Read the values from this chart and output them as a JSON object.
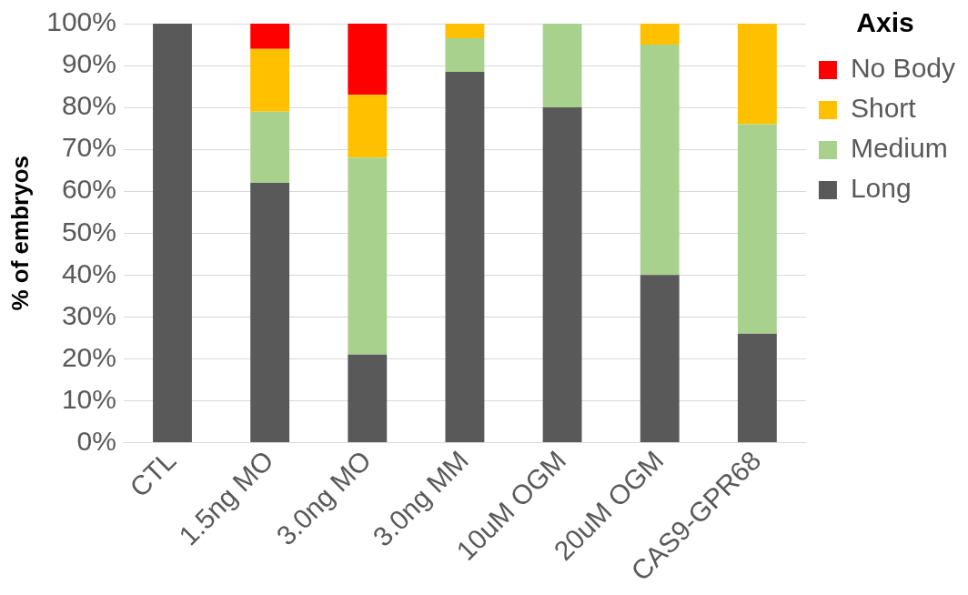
{
  "chart_data": {
    "type": "bar",
    "stacked": true,
    "ylabel": "% of embryos",
    "legend_title": "Axis",
    "legend": "right",
    "grid": "y",
    "categories": [
      "CTL",
      "1.5ng MO",
      "3.0ng MO",
      "3.0ng MM",
      "10uM OGM",
      "20uM OGM",
      "CAS9-GPR68"
    ],
    "series": [
      {
        "name": "Long",
        "color": "#595959",
        "values": [
          100,
          62,
          21,
          88.5,
          80,
          40,
          26
        ]
      },
      {
        "name": "Medium",
        "color": "#a9d18e",
        "values": [
          0,
          17,
          47,
          8,
          20,
          55,
          50
        ]
      },
      {
        "name": "Short",
        "color": "#ffc000",
        "values": [
          0,
          15,
          15,
          3.5,
          0,
          5,
          24
        ]
      },
      {
        "name": "No Body",
        "color": "#ff0000",
        "values": [
          0,
          6,
          17,
          0,
          0,
          0,
          0
        ]
      }
    ],
    "ylim": [
      0,
      100
    ],
    "yticks": [
      {
        "value": 0,
        "label": "0%"
      },
      {
        "value": 10,
        "label": "10%"
      },
      {
        "value": 20,
        "label": "20%"
      },
      {
        "value": 30,
        "label": "30%"
      },
      {
        "value": 40,
        "label": "40%"
      },
      {
        "value": 50,
        "label": "50%"
      },
      {
        "value": 60,
        "label": "60%"
      },
      {
        "value": 70,
        "label": "70%"
      },
      {
        "value": 80,
        "label": "80%"
      },
      {
        "value": 90,
        "label": "90%"
      },
      {
        "value": 100,
        "label": "100%"
      }
    ]
  }
}
